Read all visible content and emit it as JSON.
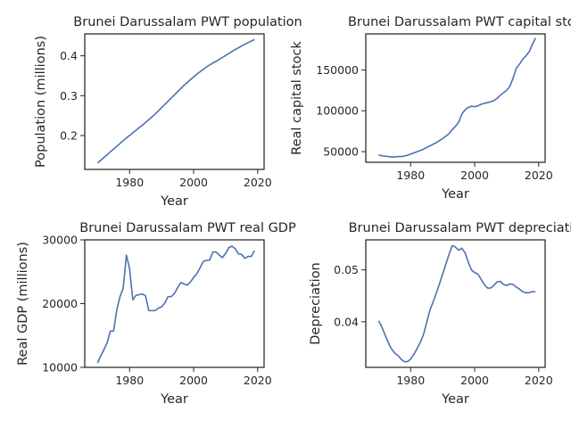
{
  "figure": {
    "background": "#ffffff",
    "line_color": "#4c72b0"
  },
  "chart_data": [
    {
      "type": "line",
      "title": "Brunei Darussalam PWT population",
      "xlabel": "Year",
      "ylabel": "Population (millions)",
      "xlim": [
        1966,
        2022
      ],
      "ylim": [
        0.115,
        0.455
      ],
      "xticks": [
        1980,
        2000,
        2020
      ],
      "yticks": [
        0.2,
        0.3,
        0.4
      ],
      "ytick_labels": [
        "0.2",
        "0.3",
        "0.4"
      ],
      "x": [
        1970,
        1971,
        1972,
        1973,
        1974,
        1975,
        1976,
        1977,
        1978,
        1979,
        1980,
        1981,
        1982,
        1983,
        1984,
        1985,
        1986,
        1987,
        1988,
        1989,
        1990,
        1991,
        1992,
        1993,
        1994,
        1995,
        1996,
        1997,
        1998,
        1999,
        2000,
        2001,
        2002,
        2003,
        2004,
        2005,
        2006,
        2007,
        2008,
        2009,
        2010,
        2011,
        2012,
        2013,
        2014,
        2015,
        2016,
        2017,
        2018,
        2019
      ],
      "values": [
        0.131,
        0.138,
        0.145,
        0.152,
        0.159,
        0.166,
        0.173,
        0.18,
        0.187,
        0.194,
        0.2,
        0.207,
        0.213,
        0.22,
        0.226,
        0.233,
        0.24,
        0.247,
        0.254,
        0.262,
        0.27,
        0.278,
        0.286,
        0.294,
        0.302,
        0.31,
        0.318,
        0.326,
        0.333,
        0.34,
        0.347,
        0.354,
        0.36,
        0.366,
        0.372,
        0.377,
        0.382,
        0.386,
        0.391,
        0.396,
        0.401,
        0.406,
        0.411,
        0.416,
        0.42,
        0.425,
        0.429,
        0.433,
        0.437,
        0.441
      ]
    },
    {
      "type": "line",
      "title": "Brunei Darussalam PWT capital stock",
      "xlabel": "Year",
      "ylabel": "Real capital stock",
      "xlim": [
        1966,
        2022
      ],
      "ylim": [
        37000,
        194000
      ],
      "xticks": [
        1980,
        2000,
        2020
      ],
      "yticks": [
        50000,
        100000,
        150000
      ],
      "ytick_labels": [
        "50000",
        "100000",
        "150000"
      ],
      "x": [
        1970,
        1971,
        1972,
        1973,
        1974,
        1975,
        1976,
        1977,
        1978,
        1979,
        1980,
        1981,
        1982,
        1983,
        1984,
        1985,
        1986,
        1987,
        1988,
        1989,
        1990,
        1991,
        1992,
        1993,
        1994,
        1995,
        1996,
        1997,
        1998,
        1999,
        2000,
        2001,
        2002,
        2003,
        2004,
        2005,
        2006,
        2007,
        2008,
        2009,
        2010,
        2011,
        2012,
        2013,
        2014,
        2015,
        2016,
        2017,
        2018,
        2019
      ],
      "values": [
        46000,
        45000,
        44500,
        44000,
        43500,
        43500,
        44000,
        44000,
        44500,
        45500,
        47000,
        48500,
        50000,
        51500,
        53000,
        55000,
        57000,
        59000,
        61000,
        63500,
        66000,
        69000,
        72000,
        77000,
        81000,
        86000,
        96000,
        101000,
        104000,
        105500,
        105000,
        106000,
        108000,
        109000,
        110000,
        111000,
        112500,
        115000,
        119000,
        122000,
        125000,
        130000,
        140000,
        152000,
        157000,
        163000,
        167000,
        172000,
        181000,
        189000
      ]
    },
    {
      "type": "line",
      "title": "Brunei Darussalam PWT real GDP",
      "xlabel": "Year",
      "ylabel": "Real GDP (millions)",
      "xlim": [
        1966,
        2022
      ],
      "ylim": [
        10000,
        30000
      ],
      "xticks": [
        1980,
        2000,
        2020
      ],
      "yticks": [
        10000,
        20000,
        30000
      ],
      "ytick_labels": [
        "10000",
        "20000",
        "30000"
      ],
      "x": [
        1970,
        1971,
        1972,
        1973,
        1974,
        1975,
        1976,
        1977,
        1978,
        1979,
        1980,
        1981,
        1982,
        1983,
        1984,
        1985,
        1986,
        1987,
        1988,
        1989,
        1990,
        1991,
        1992,
        1993,
        1994,
        1995,
        1996,
        1997,
        1998,
        1999,
        2000,
        2001,
        2002,
        2003,
        2004,
        2005,
        2006,
        2007,
        2008,
        2009,
        2010,
        2011,
        2012,
        2013,
        2014,
        2015,
        2016,
        2017,
        2018,
        2019
      ],
      "values": [
        10700,
        11800,
        12800,
        13900,
        15700,
        15700,
        19000,
        21100,
        22400,
        27600,
        25500,
        20600,
        21300,
        21400,
        21500,
        21200,
        18900,
        18900,
        18900,
        19300,
        19500,
        20100,
        21100,
        21100,
        21600,
        22500,
        23300,
        23100,
        22900,
        23400,
        24100,
        24700,
        25600,
        26600,
        26800,
        26800,
        28100,
        28100,
        27600,
        27200,
        27900,
        28800,
        29000,
        28600,
        27800,
        27700,
        27100,
        27400,
        27400,
        28300
      ]
    },
    {
      "type": "line",
      "title": "Brunei Darussalam PWT depreciation",
      "xlabel": "Year",
      "ylabel": "Depreciation",
      "xlim": [
        1966,
        2022
      ],
      "ylim": [
        0.0312,
        0.0558
      ],
      "xticks": [
        1980,
        2000,
        2020
      ],
      "yticks": [
        0.04,
        0.05
      ],
      "ytick_labels": [
        "0.04",
        "0.05"
      ],
      "x": [
        1970,
        1971,
        1972,
        1973,
        1974,
        1975,
        1976,
        1977,
        1978,
        1979,
        1980,
        1981,
        1982,
        1983,
        1984,
        1985,
        1986,
        1987,
        1988,
        1989,
        1990,
        1991,
        1992,
        1993,
        1994,
        1995,
        1996,
        1997,
        1998,
        1999,
        2000,
        2001,
        2002,
        2003,
        2004,
        2005,
        2006,
        2007,
        2008,
        2009,
        2010,
        2011,
        2012,
        2013,
        2014,
        2015,
        2016,
        2017,
        2018,
        2019
      ],
      "values": [
        0.0402,
        0.039,
        0.0375,
        0.036,
        0.0348,
        0.034,
        0.0335,
        0.0328,
        0.0323,
        0.0323,
        0.0328,
        0.0337,
        0.0348,
        0.036,
        0.0375,
        0.0398,
        0.0422,
        0.0438,
        0.0455,
        0.0473,
        0.0492,
        0.0511,
        0.053,
        0.0547,
        0.0544,
        0.0538,
        0.0542,
        0.0533,
        0.0515,
        0.05,
        0.0495,
        0.0492,
        0.0482,
        0.0472,
        0.0465,
        0.0465,
        0.047,
        0.0477,
        0.0478,
        0.0472,
        0.047,
        0.0473,
        0.0472,
        0.0467,
        0.0463,
        0.0458,
        0.0456,
        0.0456,
        0.0458,
        0.0458
      ]
    }
  ]
}
